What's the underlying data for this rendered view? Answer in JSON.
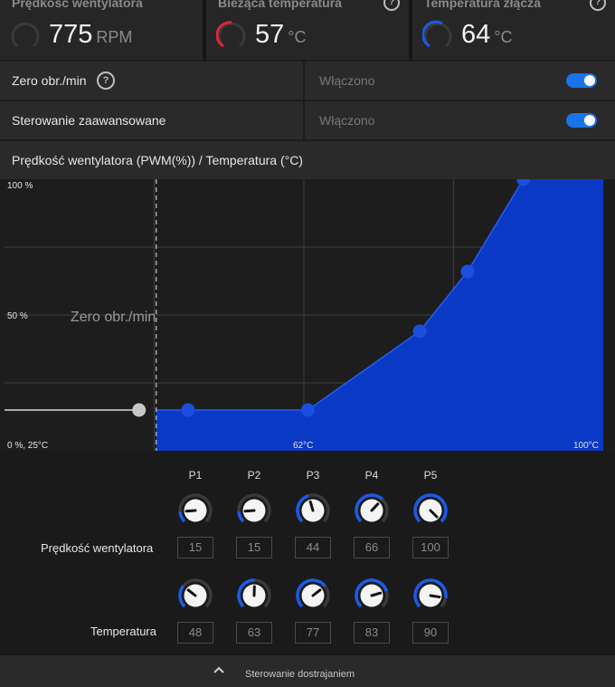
{
  "cards": [
    {
      "title": "Prędkość wentylatora",
      "value": "775",
      "unit": "RPM",
      "help": false,
      "gauge_color": "#3a3a3a",
      "gauge_fraction": 0.0
    },
    {
      "title": "Bieżąca temperatura",
      "value": "57",
      "unit": "°C",
      "help": true,
      "gauge_color": "#e0263c",
      "gauge_fraction": 0.45
    },
    {
      "title": "Temperatura złącza",
      "value": "64",
      "unit": "°C",
      "help": true,
      "gauge_color": "#1a5be8",
      "gauge_fraction": 0.55
    }
  ],
  "settings": {
    "zero_rpm": {
      "label": "Zero obr./min",
      "value": "Włączono",
      "enabled": true
    },
    "advanced": {
      "label": "Sterowanie zaawansowane",
      "value": "Włączono",
      "enabled": true
    }
  },
  "chart_header": "Prędkość wentylatora (PWM(%)) / Temperatura (°C)",
  "chart_data": {
    "type": "area",
    "x": [
      48,
      63,
      77,
      83,
      90
    ],
    "y": [
      15,
      15,
      44,
      66,
      100
    ],
    "zero_rpm_threshold": 44,
    "zero_rpm_label": "Zero obr./min",
    "xlim": [
      25,
      100
    ],
    "ylim": [
      0,
      100
    ],
    "y_tick_labels": [
      "100 %",
      "50 %"
    ],
    "x_tick_labels": [
      "0 %, 25°C",
      "62°C",
      "100°C"
    ],
    "grid": true,
    "fill_color": "#0a3bcf",
    "point_color": "#1a4fe0"
  },
  "controls": {
    "points": [
      "P1",
      "P2",
      "P3",
      "P4",
      "P5"
    ],
    "fan_label": "Prędkość wentylatora",
    "temp_label": "Temperatura",
    "fan_values": [
      "15",
      "15",
      "44",
      "66",
      "100"
    ],
    "temp_values": [
      "48",
      "63",
      "77",
      "83",
      "90"
    ]
  },
  "footer": {
    "label": "Sterowanie dostrajaniem"
  },
  "colors": {
    "accent": "#1a73e8",
    "knob_track": "#3a3a3a",
    "knob_fill": "#1a5be8"
  }
}
